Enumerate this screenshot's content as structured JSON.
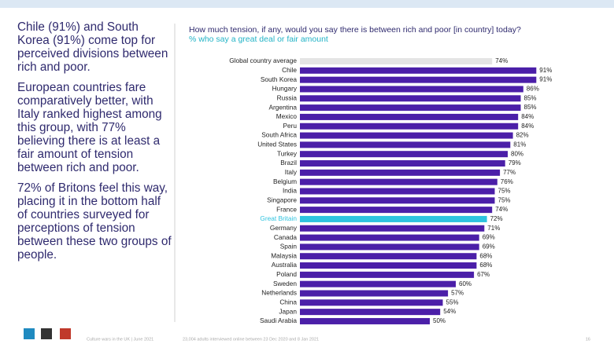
{
  "text": [
    "Chile (91%) and South Korea (91%) come top for perceived divisions between rich and poor.",
    "European countries fare comparatively better, with Italy ranked highest among this group, with 77% believing there is at least a fair amount of tension between rich and poor.",
    "72% of Britons feel this way, placing it in the bottom half of countries surveyed for perceptions of tension between these two groups of people."
  ],
  "footer": {
    "left": "Culture wars in the UK | June 2021",
    "middle": "23,004 adults interviewed online between 23 Dec 2020 and 8 Jan 2021",
    "page": "16"
  },
  "chart_data": {
    "type": "bar",
    "orientation": "horizontal",
    "title": "How much tension, if any, would you say there is between rich and poor [in country] today?",
    "subtitle": "% who say a great deal or fair amount",
    "categories": [
      "Global country average",
      "Chile",
      "South Korea",
      "Hungary",
      "Russia",
      "Argentina",
      "Mexico",
      "Peru",
      "South Africa",
      "United States",
      "Turkey",
      "Brazil",
      "Italy",
      "Belgium",
      "India",
      "Singapore",
      "France",
      "Great Britain",
      "Germany",
      "Canada",
      "Spain",
      "Malaysia",
      "Australia",
      "Poland",
      "Sweden",
      "Netherlands",
      "China",
      "Japan",
      "Saudi Arabia"
    ],
    "values": [
      74,
      91,
      91,
      86,
      85,
      85,
      84,
      84,
      82,
      81,
      80,
      79,
      77,
      76,
      75,
      75,
      74,
      72,
      71,
      69,
      69,
      68,
      68,
      67,
      60,
      57,
      55,
      54,
      50
    ],
    "value_labels": [
      "74%",
      "91%",
      "91%",
      "86%",
      "85%",
      "85%",
      "84%",
      "84%",
      "82%",
      "81%",
      "80%",
      "79%",
      "77%",
      "76%",
      "75%",
      "75%",
      "74%",
      "72%",
      "71%",
      "69%",
      "69%",
      "68%",
      "68%",
      "67%",
      "60%",
      "57%",
      "55%",
      "54%",
      "50%"
    ],
    "colors": [
      "#e4e4e4",
      "#4b1fa8",
      "#4b1fa8",
      "#4b1fa8",
      "#4b1fa8",
      "#4b1fa8",
      "#4b1fa8",
      "#4b1fa8",
      "#4b1fa8",
      "#4b1fa8",
      "#4b1fa8",
      "#4b1fa8",
      "#4b1fa8",
      "#4b1fa8",
      "#4b1fa8",
      "#4b1fa8",
      "#4b1fa8",
      "#2ec3df",
      "#4b1fa8",
      "#4b1fa8",
      "#4b1fa8",
      "#4b1fa8",
      "#4b1fa8",
      "#4b1fa8",
      "#4b1fa8",
      "#4b1fa8",
      "#4b1fa8",
      "#4b1fa8",
      "#4b1fa8"
    ],
    "label_colors": [
      "#222",
      "#222",
      "#222",
      "#222",
      "#222",
      "#222",
      "#222",
      "#222",
      "#222",
      "#222",
      "#222",
      "#222",
      "#222",
      "#222",
      "#222",
      "#222",
      "#222",
      "#2ec3df",
      "#222",
      "#222",
      "#222",
      "#222",
      "#222",
      "#222",
      "#222",
      "#222",
      "#222",
      "#222",
      "#222"
    ],
    "xlim": [
      0,
      100
    ]
  }
}
